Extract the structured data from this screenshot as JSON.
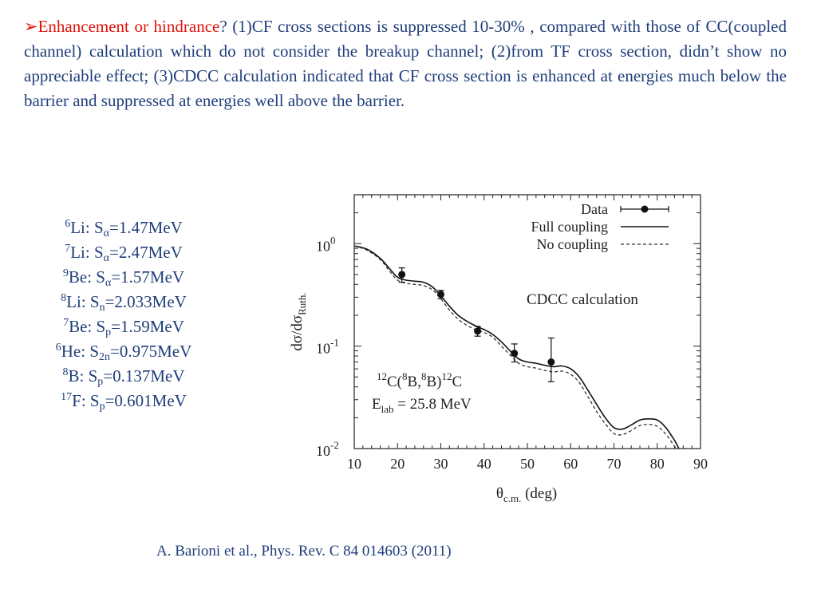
{
  "slide": {
    "bullet": "➢",
    "intro_highlight": "Enhancement or hindrance",
    "intro_rest": "? (1)CF cross sections is suppressed 10-30% , compared with those of CC(coupled channel) calculation which do not consider the breakup channel; (2)from TF cross section, didn’t show no appreciable effect; (3)CDCC calculation indicated that CF cross section is enhanced at energies much below the barrier and suppressed at energies well above the barrier.",
    "citation": "A. Barioni et al., Phys. Rev.  C 84 014603 (2011)",
    "colors": {
      "body_text": "#1f3e7a",
      "highlight": "#e0120c"
    }
  },
  "nuclides": [
    {
      "mass": "6",
      "element": "Li",
      "sep_sub": "α",
      "value": "=1.47MeV"
    },
    {
      "mass": "7",
      "element": "Li",
      "sep_sub": "α",
      "value": "=2.47MeV"
    },
    {
      "mass": "9",
      "element": "Be",
      "sep_sub": "α",
      "value": "=1.57MeV"
    },
    {
      "mass": "8",
      "element": "Li",
      "sep_sub": "n",
      "value": "=2.033MeV"
    },
    {
      "mass": "7",
      "element": "Be",
      "sep_sub": "p",
      "value": "=1.59MeV"
    },
    {
      "mass": "6",
      "element": "He",
      "sep_sub": "2n",
      "value": "=0.975MeV"
    },
    {
      "mass": "8",
      "element": "B",
      "sep_sub": "p",
      "value": "=0.137MeV"
    },
    {
      "mass": "17",
      "element": "F",
      "sep_sub": "p",
      "value": "=0.601MeV"
    }
  ],
  "chart_data": {
    "type": "line",
    "x_tick_labels": [
      "10",
      "20",
      "30",
      "40",
      "50",
      "60",
      "70",
      "80",
      "90"
    ],
    "y_tick_labels": [
      {
        "base": "10",
        "exp": "0",
        "value": 1
      },
      {
        "base": "10",
        "exp": "-1",
        "value": 0.1
      },
      {
        "base": "10",
        "exp": "-2",
        "value": 0.01
      }
    ],
    "xlim": [
      10,
      90
    ],
    "ylim": [
      0.01,
      3
    ],
    "yscale": "log",
    "xlabel": {
      "main": "θ",
      "sub": "c.m.",
      "rest": " (deg)"
    },
    "ylabel": {
      "main": "dσ/dσ",
      "sub": "Ruth."
    },
    "legend_position": "top-right",
    "annotation": "CDCC calculation",
    "reaction": {
      "pre": "12",
      "a": "C(",
      "b_pre": "8",
      "b": "B,",
      "c_pre": "8",
      "d": "B)",
      "e_pre": "12",
      "f": "C"
    },
    "energy": {
      "main": "E",
      "sub": "lab",
      "rest": " = 25.8 MeV"
    },
    "series": [
      {
        "name": "Data",
        "style": "points-with-errorbars",
        "color": "#111111",
        "points": [
          {
            "x": 21.0,
            "y": 0.5,
            "yerr_lo": 0.42,
            "yerr_hi": 0.58
          },
          {
            "x": 30.0,
            "y": 0.32,
            "yerr_lo": 0.29,
            "yerr_hi": 0.35
          },
          {
            "x": 38.5,
            "y": 0.14,
            "yerr_lo": 0.125,
            "yerr_hi": 0.156
          },
          {
            "x": 47.0,
            "y": 0.085,
            "yerr_lo": 0.07,
            "yerr_hi": 0.105
          },
          {
            "x": 55.5,
            "y": 0.07,
            "yerr_lo": 0.045,
            "yerr_hi": 0.12
          }
        ]
      },
      {
        "name": "Full coupling",
        "style": "solid",
        "color": "#111111",
        "x": [
          10,
          13,
          16,
          18,
          20,
          22,
          24,
          26,
          28,
          30,
          32,
          34,
          36,
          38,
          40,
          42,
          44,
          46,
          48,
          50,
          52,
          54,
          56,
          58,
          60,
          62,
          64,
          66,
          68,
          70,
          72,
          74,
          76,
          78,
          80,
          82,
          84,
          85
        ],
        "y": [
          0.95,
          0.88,
          0.72,
          0.58,
          0.47,
          0.44,
          0.43,
          0.42,
          0.38,
          0.31,
          0.245,
          0.2,
          0.175,
          0.158,
          0.145,
          0.13,
          0.11,
          0.09,
          0.075,
          0.07,
          0.068,
          0.065,
          0.063,
          0.064,
          0.06,
          0.05,
          0.037,
          0.027,
          0.02,
          0.016,
          0.0155,
          0.017,
          0.019,
          0.0195,
          0.019,
          0.016,
          0.012,
          0.01
        ]
      },
      {
        "name": "No coupling",
        "style": "dashed",
        "color": "#333333",
        "x": [
          10,
          13,
          16,
          18,
          20,
          22,
          24,
          26,
          28,
          30,
          32,
          34,
          36,
          38,
          40,
          42,
          44,
          46,
          48,
          50,
          52,
          54,
          56,
          58,
          60,
          62,
          64,
          66,
          68,
          70,
          72,
          74,
          76,
          78,
          80,
          82,
          84,
          85
        ],
        "y": [
          0.95,
          0.86,
          0.7,
          0.55,
          0.44,
          0.41,
          0.4,
          0.39,
          0.355,
          0.29,
          0.225,
          0.183,
          0.16,
          0.145,
          0.136,
          0.122,
          0.1,
          0.082,
          0.068,
          0.063,
          0.061,
          0.058,
          0.056,
          0.057,
          0.053,
          0.044,
          0.032,
          0.023,
          0.0175,
          0.014,
          0.0137,
          0.015,
          0.0168,
          0.0172,
          0.0165,
          0.0138,
          0.0105,
          0.009
        ]
      }
    ]
  }
}
